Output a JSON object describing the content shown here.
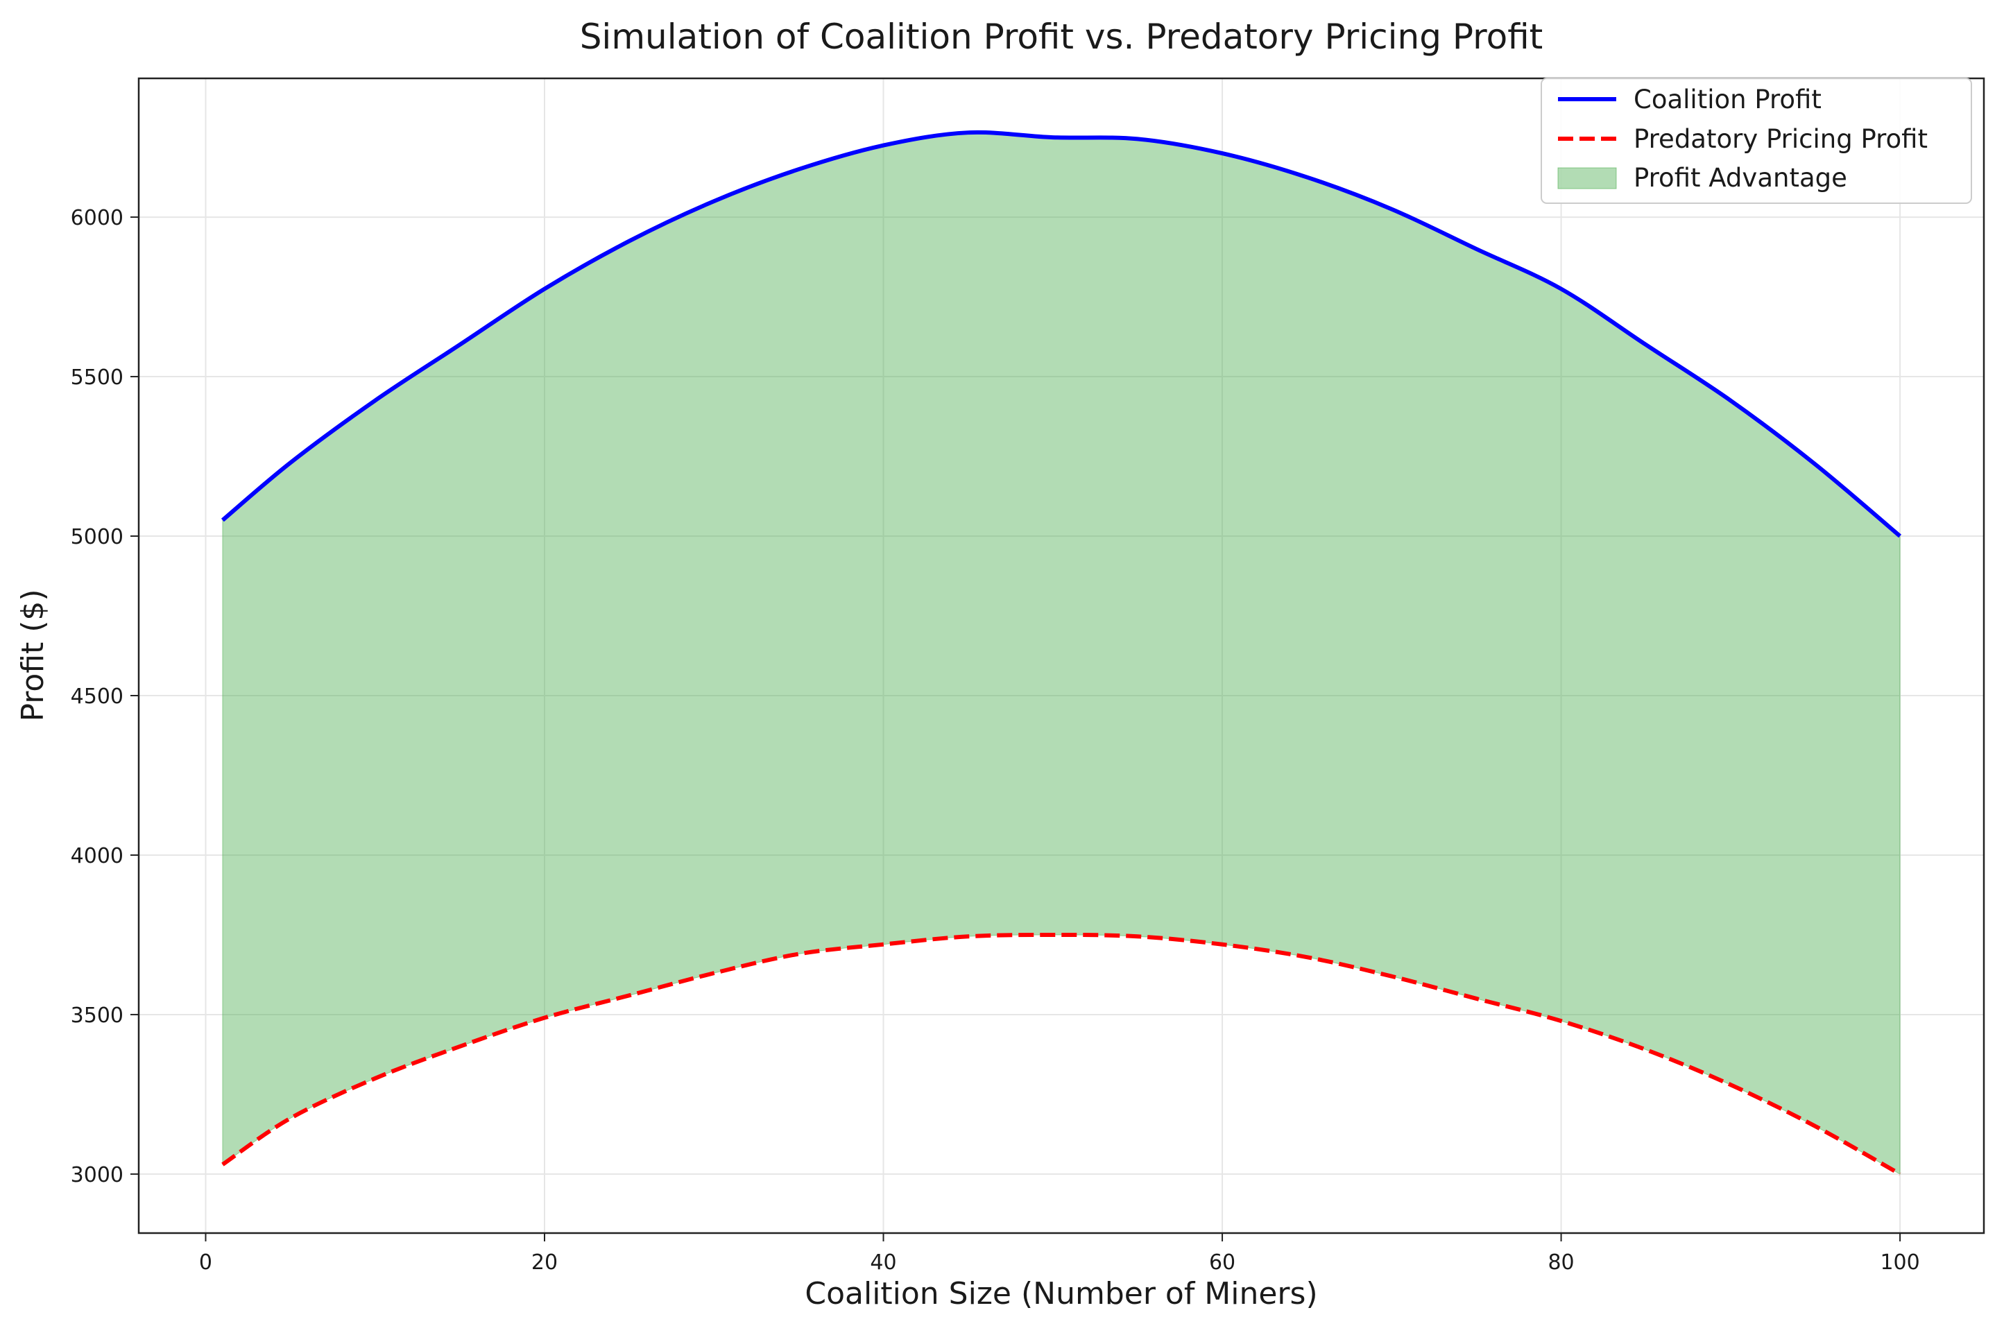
{
  "chart_data": {
    "type": "line",
    "title": "Simulation of Coalition Profit vs. Predatory Pricing Profit",
    "xlabel": "Coalition Size (Number of Miners)",
    "ylabel": "Profit ($)",
    "xlim": [
      -3.95,
      104.95
    ],
    "ylim": [
      2815,
      6435
    ],
    "xticks": [
      0,
      20,
      40,
      60,
      80,
      100
    ],
    "yticks": [
      3000,
      3500,
      4000,
      4500,
      5000,
      5500,
      6000
    ],
    "grid": true,
    "legend_position": "upper right",
    "series": [
      {
        "name": "Coalition Profit",
        "style": "solid",
        "color": "#0000ff",
        "x": [
          1,
          5,
          10,
          15,
          20,
          25,
          30,
          35,
          40,
          45,
          50,
          55,
          60,
          65,
          70,
          75,
          80,
          85,
          90,
          95,
          100
        ],
        "y": [
          5050,
          5230,
          5425,
          5600,
          5775,
          5925,
          6050,
          6150,
          6225,
          6265,
          6250,
          6245,
          6200,
          6125,
          6025,
          5900,
          5775,
          5600,
          5425,
          5225,
          5000
        ]
      },
      {
        "name": "Predatory Pricing Profit",
        "style": "dashed",
        "color": "#ff0000",
        "x": [
          1,
          5,
          10,
          15,
          20,
          25,
          30,
          35,
          40,
          45,
          50,
          55,
          60,
          65,
          70,
          75,
          80,
          85,
          90,
          95,
          100
        ],
        "y": [
          3030,
          3175,
          3300,
          3400,
          3490,
          3560,
          3630,
          3690,
          3720,
          3745,
          3750,
          3745,
          3720,
          3680,
          3620,
          3550,
          3480,
          3390,
          3280,
          3150,
          3000
        ]
      }
    ],
    "fill": {
      "name": "Profit Advantage",
      "color": "#4caf50",
      "opacity": 0.43,
      "between": [
        "Coalition Profit",
        "Predatory Pricing Profit"
      ]
    }
  }
}
